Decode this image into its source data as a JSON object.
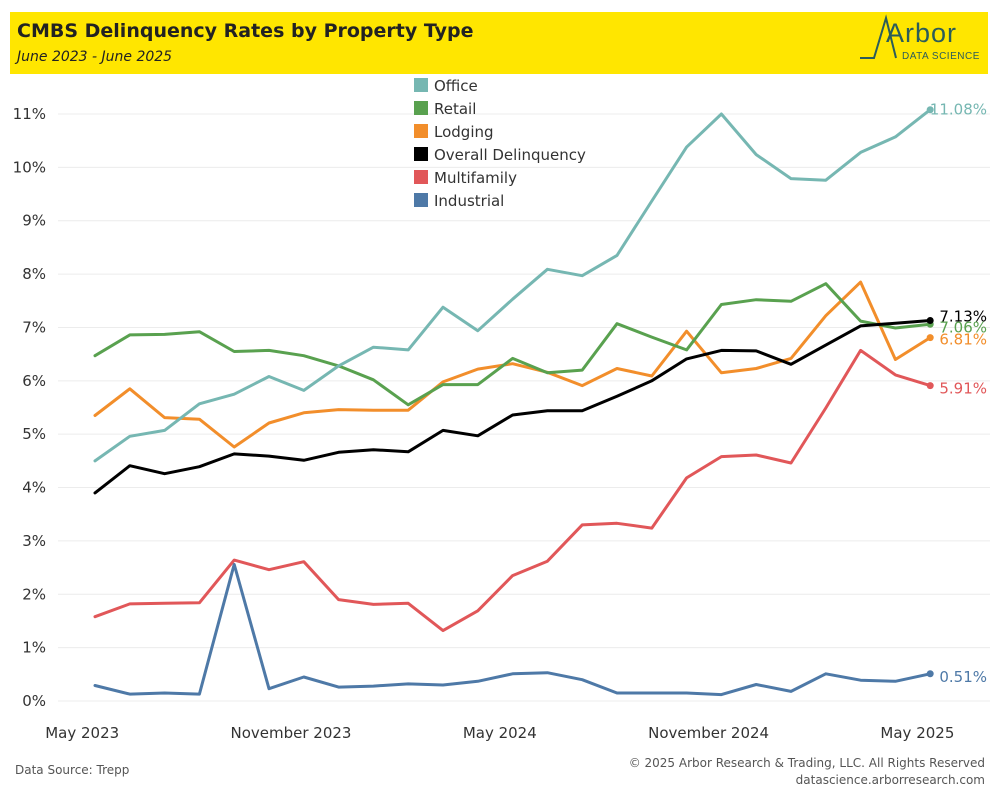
{
  "header": {
    "title": "CMBS Delinquency Rates by Property Type",
    "subtitle": "June 2023 - June 2025",
    "logo_word": "Arbor",
    "logo_sub": "DATA SCIENCE"
  },
  "footer": {
    "source": "Data Source: Trepp",
    "copyright": "© 2025 Arbor Research & Trading, LLC. All Rights Reserved",
    "url": "datascience.arborresearch.com"
  },
  "colors": {
    "header_bg": "#ffe600",
    "grid": "#e8e8e8"
  },
  "chart_data": {
    "type": "line",
    "title": "CMBS Delinquency Rates by Property Type",
    "xlabel": "",
    "ylabel": "",
    "ylim": [
      0,
      11.5
    ],
    "y_ticks": [
      0,
      1,
      2,
      3,
      4,
      5,
      6,
      7,
      8,
      9,
      10,
      11
    ],
    "y_tick_labels": [
      "0%",
      "1%",
      "2%",
      "3%",
      "4%",
      "5%",
      "6%",
      "7%",
      "8%",
      "9%",
      "10%",
      "11%"
    ],
    "x_start": "June 2023",
    "x_ticks": [
      {
        "index": -1,
        "label": "May 2023"
      },
      {
        "index": 5,
        "label": "November 2023"
      },
      {
        "index": 11,
        "label": "May 2024"
      },
      {
        "index": 17,
        "label": "November 2024"
      },
      {
        "index": 23,
        "label": "May 2025"
      }
    ],
    "x_count": 25,
    "legend_position": "top-center",
    "series": [
      {
        "name": "Office",
        "color": "#76b7b2",
        "end_label": "11.08%",
        "values": [
          4.5,
          4.96,
          5.07,
          5.57,
          5.75,
          6.08,
          5.82,
          6.28,
          6.63,
          6.58,
          7.38,
          6.94,
          7.53,
          8.09,
          7.97,
          8.35,
          9.37,
          10.38,
          11.0,
          10.24,
          9.79,
          9.76,
          10.28,
          10.57,
          11.08
        ]
      },
      {
        "name": "Retail",
        "color": "#59a14f",
        "end_label": "7.06%",
        "values": [
          6.47,
          6.86,
          6.87,
          6.92,
          6.55,
          6.57,
          6.47,
          6.28,
          6.02,
          5.55,
          5.93,
          5.93,
          6.42,
          6.15,
          6.2,
          7.07,
          6.82,
          6.58,
          7.43,
          7.52,
          7.49,
          7.82,
          7.12,
          6.99,
          7.06
        ]
      },
      {
        "name": "Lodging",
        "color": "#f28e2b",
        "end_label": "6.81%",
        "values": [
          5.35,
          5.85,
          5.31,
          5.28,
          4.76,
          5.21,
          5.4,
          5.46,
          5.45,
          5.45,
          5.98,
          6.22,
          6.32,
          6.16,
          5.91,
          6.23,
          6.09,
          6.93,
          6.15,
          6.23,
          6.42,
          7.22,
          7.85,
          6.4,
          6.81
        ]
      },
      {
        "name": "Overall Delinquency",
        "color": "#000000",
        "end_label": "7.13%",
        "values": [
          3.9,
          4.41,
          4.26,
          4.39,
          4.63,
          4.59,
          4.51,
          4.66,
          4.71,
          4.67,
          5.07,
          4.97,
          5.36,
          5.44,
          5.44,
          5.71,
          6.0,
          6.41,
          6.57,
          6.56,
          6.31,
          6.67,
          7.03,
          7.08,
          7.13
        ]
      },
      {
        "name": "Multifamily",
        "color": "#e15759",
        "end_label": "5.91%",
        "values": [
          1.58,
          1.82,
          1.83,
          1.84,
          2.64,
          2.46,
          2.61,
          1.9,
          1.81,
          1.83,
          1.32,
          1.69,
          2.35,
          2.62,
          3.3,
          3.33,
          3.24,
          4.18,
          4.58,
          4.61,
          4.46,
          5.49,
          6.57,
          6.11,
          5.91
        ]
      },
      {
        "name": "Industrial",
        "color": "#4e79a7",
        "end_label": "0.51%",
        "values": [
          0.29,
          0.13,
          0.15,
          0.13,
          2.56,
          0.23,
          0.45,
          0.26,
          0.28,
          0.32,
          0.3,
          0.37,
          0.51,
          0.53,
          0.4,
          0.15,
          0.15,
          0.15,
          0.12,
          0.31,
          0.18,
          0.51,
          0.39,
          0.37,
          0.51
        ]
      }
    ]
  }
}
